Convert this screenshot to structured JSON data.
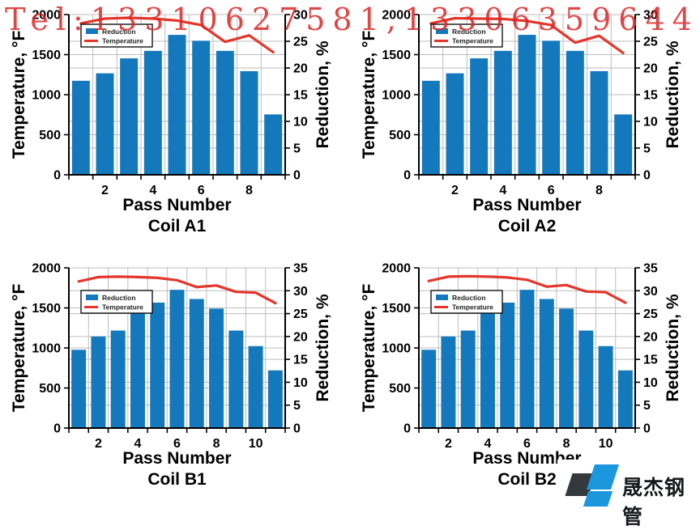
{
  "watermark": {
    "text": "Tel:13310627581,13306359644",
    "color": "#DC2626"
  },
  "logo": {
    "text": "晟杰钢管",
    "blue": "#1C97DD",
    "dark": "#35393E"
  },
  "colors": {
    "bar_blue": "#1478BD",
    "line_red": "#E4362C",
    "grid": "#BDBDBD",
    "axis": "#000000",
    "text": "#000000",
    "legend_border": "#000000",
    "legend_bg": "#FFFFFF"
  },
  "legend": {
    "reduction_label": "Reduction",
    "temperature_label": "Temperature"
  },
  "chart_data": [
    {
      "id": "coil-a1",
      "type": "bar",
      "title_lines": [
        "Pass Number",
        "Coil A1"
      ],
      "x_axis": {
        "categories": [
          1,
          2,
          3,
          4,
          5,
          6,
          7,
          8,
          9
        ],
        "labeled_ticks": [
          2,
          4,
          6,
          8
        ]
      },
      "left_axis": {
        "label": "Temperature, °F",
        "min": 0,
        "max": 2000,
        "step": 500
      },
      "right_axis": {
        "label": "Reduction, %",
        "min": 0,
        "max": 30,
        "step": 5
      },
      "series": [
        {
          "name": "Reduction",
          "type": "bar",
          "axis": "right",
          "unit": "%",
          "values": [
            17.6,
            19.0,
            21.8,
            23.2,
            26.2,
            25.1,
            23.2,
            19.4,
            11.3
          ]
        },
        {
          "name": "Temperature",
          "type": "line",
          "axis": "left",
          "unit": "°F",
          "values": [
            1890,
            1950,
            1960,
            1950,
            1925,
            1870,
            1660,
            1740,
            1530
          ]
        }
      ]
    },
    {
      "id": "coil-a2",
      "type": "bar",
      "title_lines": [
        "Pass Number",
        "Coil A2"
      ],
      "x_axis": {
        "categories": [
          1,
          2,
          3,
          4,
          5,
          6,
          7,
          8,
          9
        ],
        "labeled_ticks": [
          2,
          4,
          6,
          8
        ]
      },
      "left_axis": {
        "label": "Temperature, °F",
        "min": 0,
        "max": 2000,
        "step": 500
      },
      "right_axis": {
        "label": "Reduction, %",
        "min": 0,
        "max": 30,
        "step": 5
      },
      "series": [
        {
          "name": "Reduction",
          "type": "bar",
          "axis": "right",
          "unit": "%",
          "values": [
            17.6,
            19.0,
            21.8,
            23.2,
            26.2,
            25.1,
            23.2,
            19.4,
            11.3
          ]
        },
        {
          "name": "Temperature",
          "type": "line",
          "axis": "left",
          "unit": "°F",
          "values": [
            1890,
            1955,
            1950,
            1945,
            1920,
            1870,
            1650,
            1735,
            1520
          ]
        }
      ]
    },
    {
      "id": "coil-b1",
      "type": "bar",
      "title_lines": [
        "Pass Number",
        "Coil B1"
      ],
      "x_axis": {
        "categories": [
          1,
          2,
          3,
          4,
          5,
          6,
          7,
          8,
          9,
          10,
          11
        ],
        "labeled_ticks": [
          2,
          4,
          6,
          8,
          10
        ]
      },
      "left_axis": {
        "label": "Temperature, °F",
        "min": 0,
        "max": 2000,
        "step": 500
      },
      "right_axis": {
        "label": "Reduction, %",
        "min": 0,
        "max": 35,
        "step": 5
      },
      "series": [
        {
          "name": "Reduction",
          "type": "bar",
          "axis": "right",
          "unit": "%",
          "values": [
            17.1,
            20.0,
            21.3,
            25.4,
            27.4,
            30.2,
            28.2,
            26.1,
            21.3,
            17.9,
            12.6
          ]
        },
        {
          "name": "Temperature",
          "type": "line",
          "axis": "left",
          "unit": "°F",
          "values": [
            1830,
            1885,
            1890,
            1885,
            1875,
            1845,
            1760,
            1780,
            1700,
            1690,
            1560
          ]
        }
      ]
    },
    {
      "id": "coil-b2",
      "type": "bar",
      "title_lines": [
        "Pass Number",
        "Coil B2"
      ],
      "x_axis": {
        "categories": [
          1,
          2,
          3,
          4,
          5,
          6,
          7,
          8,
          9,
          10,
          11
        ],
        "labeled_ticks": [
          2,
          4,
          6,
          8,
          10
        ]
      },
      "left_axis": {
        "label": "Temperature, °F",
        "min": 0,
        "max": 2000,
        "step": 500
      },
      "right_axis": {
        "label": "Reduction, %",
        "min": 0,
        "max": 35,
        "step": 5
      },
      "series": [
        {
          "name": "Reduction",
          "type": "bar",
          "axis": "right",
          "unit": "%",
          "values": [
            17.1,
            20.0,
            21.3,
            25.4,
            27.4,
            30.2,
            28.2,
            26.1,
            21.3,
            17.9,
            12.6
          ]
        },
        {
          "name": "Temperature",
          "type": "line",
          "axis": "left",
          "unit": "°F",
          "values": [
            1835,
            1890,
            1895,
            1890,
            1880,
            1850,
            1765,
            1785,
            1705,
            1695,
            1565
          ]
        }
      ]
    }
  ]
}
